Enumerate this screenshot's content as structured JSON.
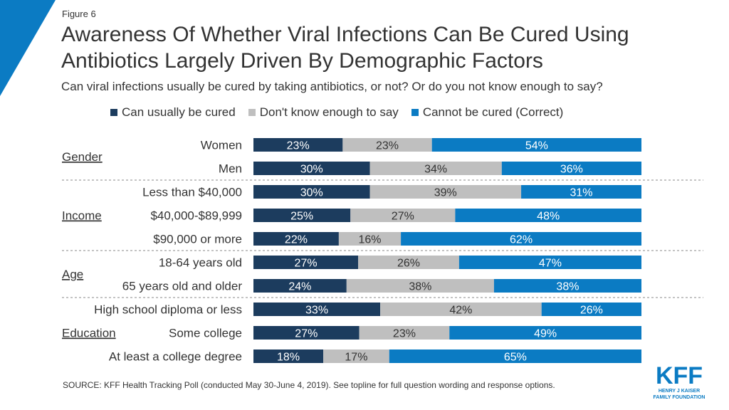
{
  "figure_label": "Figure 6",
  "title": "Awareness Of Whether Viral Infections Can Be Cured Using Antibiotics Largely Driven By Demographic Factors",
  "subtitle": "Can viral infections usually be cured by taking antibiotics, or not? Or do you not know enough to say?",
  "source": "SOURCE: KFF Health Tracking Poll (conducted May 30-June 4, 2019). See topline for full question wording and response options.",
  "logo": {
    "text": "KFF",
    "line1": "HENRY J KAISER",
    "line2": "FAMILY FOUNDATION"
  },
  "colors": {
    "cured": "#1c3c5e",
    "dontknow": "#bfbfbf",
    "cannot": "#0b7bc3",
    "corner": "#0b7bc3"
  },
  "chart_data": {
    "type": "bar",
    "orientation": "horizontal",
    "stacked": true,
    "percent": true,
    "legend": [
      "Can usually be cured",
      "Don't know enough to say",
      "Cannot be cured (Correct)"
    ],
    "groups": [
      {
        "label": "Gender",
        "rows": [
          0,
          1
        ]
      },
      {
        "label": "Income",
        "rows": [
          2,
          3,
          4
        ]
      },
      {
        "label": "Age",
        "rows": [
          5,
          6
        ]
      },
      {
        "label": "Education",
        "rows": [
          7,
          8,
          9
        ]
      }
    ],
    "categories": [
      "Women",
      "Men",
      "Less than $40,000",
      "$40,000-$89,999",
      "$90,000 or more",
      "18-64 years old",
      "65 years old and older",
      "High school diploma or less",
      "Some college",
      "At least a college degree"
    ],
    "series": [
      {
        "name": "Can usually be cured",
        "values": [
          23,
          30,
          30,
          25,
          22,
          27,
          24,
          33,
          27,
          18
        ]
      },
      {
        "name": "Don't know enough to say",
        "values": [
          23,
          34,
          39,
          27,
          16,
          26,
          38,
          42,
          23,
          17
        ]
      },
      {
        "name": "Cannot be cured (Correct)",
        "values": [
          54,
          36,
          31,
          48,
          62,
          47,
          38,
          26,
          49,
          65
        ]
      }
    ]
  }
}
